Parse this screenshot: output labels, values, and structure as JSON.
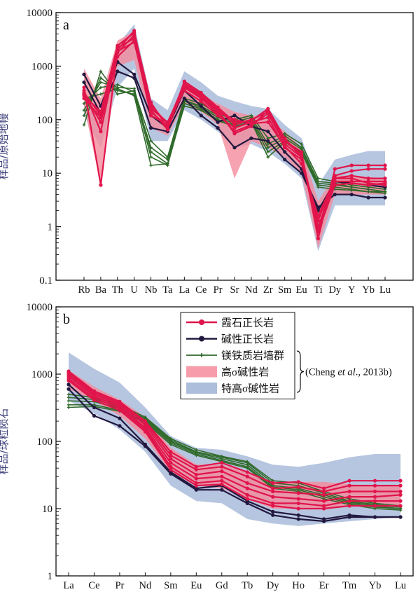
{
  "colors": {
    "nepheline_syenite": "#e0154b",
    "alkali_syenite": "#22183f",
    "mafic_dyke": "#2f6a2a",
    "high_sigma_band": "#f48b9c",
    "very_high_sigma_band": "#9fb3d6"
  },
  "legend": {
    "items": [
      {
        "label": "霞石正长岩",
        "color": "#e0154b",
        "marker": "circle-line"
      },
      {
        "label": "碱性正长岩",
        "color": "#22183f",
        "marker": "circle-line"
      },
      {
        "label": "镁铁质岩墙群",
        "color": "#2f6a2a",
        "marker": "plus-line"
      },
      {
        "label": "高σ碱性岩",
        "color": "#f48b9c",
        "marker": "fill"
      },
      {
        "label": "特高σ碱性岩",
        "color": "#9fb3d6",
        "marker": "fill"
      }
    ],
    "citation_parts": [
      "(Cheng ",
      "et al",
      "., 2013b)"
    ]
  },
  "chart_data": [
    {
      "type": "line",
      "panel_label": "a",
      "ylabel": "样品/原始地幔",
      "yscale": "log",
      "ylim": [
        0.1,
        10000
      ],
      "ytick_labels": [
        "0.1",
        "1",
        "10",
        "100",
        "1000",
        "10000"
      ],
      "categories": [
        "Rb",
        "Ba",
        "Th",
        "U",
        "Nb",
        "Ta",
        "La",
        "Ce",
        "Pr",
        "Sr",
        "Nd",
        "Zr",
        "Sm",
        "Eu",
        "Ti",
        "Dy",
        "Y",
        "Yb",
        "Lu"
      ],
      "bands": [
        {
          "name": "特高σ碱性岩",
          "upper": [
            300,
            150,
            2500,
            6000,
            250,
            150,
            800,
            500,
            280,
            220,
            180,
            160,
            80,
            45,
            6,
            18,
            22,
            26,
            26
          ],
          "lower": [
            120,
            30,
            400,
            900,
            40,
            40,
            150,
            100,
            60,
            30,
            35,
            25,
            15,
            8,
            0.35,
            2.5,
            2.5,
            2.5,
            2.5
          ]
        },
        {
          "name": "高σ碱性岩",
          "upper": [
            900,
            250,
            3000,
            4500,
            200,
            90,
            450,
            300,
            200,
            140,
            120,
            110,
            60,
            30,
            3,
            9,
            9,
            8.5,
            8
          ],
          "lower": [
            180,
            6,
            1000,
            1300,
            70,
            50,
            200,
            140,
            80,
            8,
            40,
            30,
            20,
            10,
            0.4,
            4,
            4,
            4,
            4
          ]
        }
      ],
      "series": [
        {
          "group": "霞石正长岩",
          "values": [
            400,
            6,
            2000,
            4600,
            150,
            65,
            450,
            280,
            150,
            55,
            75,
            150,
            40,
            25,
            0.6,
            12,
            14,
            14,
            14
          ]
        },
        {
          "group": "霞石正长岩",
          "values": [
            350,
            60,
            1800,
            3800,
            140,
            75,
            400,
            250,
            130,
            60,
            80,
            130,
            35,
            20,
            0.9,
            9,
            11,
            12,
            12
          ]
        },
        {
          "group": "霞石正长岩",
          "values": [
            300,
            90,
            1500,
            3000,
            120,
            80,
            350,
            220,
            120,
            70,
            90,
            110,
            30,
            18,
            1.3,
            8,
            9,
            8,
            8
          ]
        },
        {
          "group": "霞石正长岩",
          "values": [
            250,
            110,
            2200,
            3300,
            180,
            85,
            480,
            300,
            160,
            80,
            100,
            140,
            40,
            22,
            1.0,
            7,
            7,
            7,
            7
          ]
        },
        {
          "group": "霞石正长岩",
          "values": [
            280,
            140,
            2400,
            4200,
            210,
            70,
            520,
            320,
            170,
            90,
            95,
            160,
            45,
            20,
            0.8,
            6,
            6.5,
            6,
            6.5
          ]
        },
        {
          "group": "霞石正长岩",
          "values": [
            320,
            120,
            1900,
            2800,
            160,
            90,
            430,
            260,
            140,
            100,
            85,
            90,
            32,
            15,
            1.6,
            8,
            8,
            6.5,
            6
          ]
        },
        {
          "group": "碱性正长岩",
          "values": [
            700,
            180,
            1200,
            700,
            120,
            70,
            350,
            180,
            90,
            120,
            75,
            60,
            25,
            12,
            2.0,
            7,
            6.5,
            6,
            5.5
          ]
        },
        {
          "group": "碱性正长岩",
          "values": [
            500,
            130,
            800,
            600,
            70,
            60,
            250,
            120,
            70,
            30,
            45,
            40,
            18,
            10,
            2.3,
            4,
            4,
            3.5,
            3.5
          ]
        },
        {
          "group": "镁铁质岩墙群",
          "values": [
            80,
            800,
            300,
            350,
            40,
            20,
            250,
            200,
            130,
            100,
            120,
            45,
            55,
            35,
            8,
            7,
            6,
            5.5,
            5
          ]
        },
        {
          "group": "镁铁质岩墙群",
          "values": [
            120,
            600,
            350,
            300,
            30,
            18,
            230,
            180,
            120,
            90,
            110,
            35,
            50,
            30,
            7,
            6.5,
            5.5,
            5,
            4.5
          ]
        },
        {
          "group": "镁铁质岩墙群",
          "values": [
            150,
            500,
            400,
            380,
            25,
            15,
            220,
            170,
            110,
            85,
            100,
            30,
            45,
            28,
            6.5,
            6,
            5.5,
            5,
            4.5
          ]
        },
        {
          "group": "镁铁质岩墙群",
          "values": [
            200,
            400,
            450,
            330,
            20,
            14,
            200,
            160,
            100,
            80,
            95,
            25,
            40,
            25,
            6,
            5.5,
            5,
            4.5,
            4.5
          ]
        },
        {
          "group": "镁铁质岩墙群",
          "values": [
            250,
            300,
            380,
            280,
            14,
            15,
            180,
            150,
            95,
            75,
            90,
            20,
            38,
            24,
            5.5,
            5,
            4.8,
            4.5,
            4.2
          ]
        }
      ]
    },
    {
      "type": "line",
      "panel_label": "b",
      "ylabel": "样品/球粒陨石",
      "yscale": "log",
      "ylim": [
        1,
        10000
      ],
      "ytick_labels": [
        "1",
        "10",
        "100",
        "1000",
        "10000"
      ],
      "categories": [
        "La",
        "Ce",
        "Pr",
        "Nd",
        "Sm",
        "Eu",
        "Gd",
        "Tb",
        "Dy",
        "Ho",
        "Er",
        "Tm",
        "Yb",
        "Lu"
      ],
      "bands": [
        {
          "name": "特高σ碱性岩",
          "upper": [
            2100,
            1200,
            750,
            320,
            120,
            80,
            75,
            60,
            45,
            42,
            48,
            58,
            65,
            65
          ],
          "lower": [
            400,
            260,
            150,
            70,
            22,
            13,
            12,
            7,
            6,
            5.5,
            6,
            6.5,
            7,
            7.5
          ]
        },
        {
          "name": "高σ碱性岩",
          "upper": [
            1150,
            650,
            420,
            230,
            80,
            45,
            45,
            35,
            25,
            25,
            25,
            23,
            22,
            22
          ],
          "lower": [
            600,
            400,
            240,
            110,
            35,
            22,
            20,
            14,
            10,
            10,
            10,
            11,
            11,
            11
          ]
        }
      ],
      "series": [
        {
          "group": "霞石正长岩",
          "values": [
            1100,
            560,
            390,
            200,
            70,
            42,
            48,
            35,
            24,
            25,
            20,
            26,
            26,
            26
          ]
        },
        {
          "group": "霞石正长岩",
          "values": [
            1050,
            530,
            370,
            190,
            62,
            38,
            42,
            30,
            20,
            21,
            18,
            22,
            22,
            22
          ]
        },
        {
          "group": "霞石正长岩",
          "values": [
            980,
            500,
            350,
            175,
            55,
            32,
            36,
            24,
            18,
            17,
            16,
            18,
            18,
            18
          ]
        },
        {
          "group": "霞石正长岩",
          "values": [
            920,
            470,
            330,
            160,
            48,
            28,
            30,
            20,
            15,
            14,
            13,
            15,
            15,
            16
          ]
        },
        {
          "group": "霞石正长岩",
          "values": [
            850,
            440,
            310,
            150,
            42,
            24,
            26,
            16,
            12,
            12,
            11,
            13,
            13,
            13
          ]
        },
        {
          "group": "霞石正长岩",
          "values": [
            800,
            410,
            290,
            140,
            38,
            22,
            23,
            14,
            11,
            10,
            10,
            11,
            11,
            11
          ]
        },
        {
          "group": "碱性正长岩",
          "values": [
            700,
            320,
            220,
            90,
            35,
            20,
            22,
            13,
            9,
            8,
            7,
            8,
            7.5,
            7.5
          ]
        },
        {
          "group": "碱性正长岩",
          "values": [
            600,
            240,
            170,
            85,
            33,
            19,
            19,
            12,
            8,
            7,
            6.5,
            7.5,
            7.5,
            7.5
          ]
        },
        {
          "group": "镁铁质岩墙群",
          "values": [
            500,
            450,
            350,
            230,
            110,
            75,
            60,
            50,
            26,
            24,
            18,
            14,
            12,
            11
          ]
        },
        {
          "group": "镁铁质岩墙群",
          "values": [
            450,
            420,
            330,
            220,
            105,
            70,
            58,
            48,
            24,
            22,
            17,
            13,
            11.5,
            10.5
          ]
        },
        {
          "group": "镁铁质岩墙群",
          "values": [
            400,
            390,
            310,
            210,
            100,
            68,
            55,
            45,
            22,
            20,
            16,
            12.5,
            11,
            10
          ]
        },
        {
          "group": "镁铁质岩墙群",
          "values": [
            350,
            350,
            290,
            200,
            95,
            65,
            52,
            42,
            21,
            19,
            15,
            12,
            10.5,
            10
          ]
        },
        {
          "group": "镁铁质岩墙群",
          "values": [
            320,
            330,
            280,
            190,
            90,
            62,
            50,
            40,
            20,
            18,
            14,
            11.5,
            10,
            9.5
          ]
        }
      ]
    }
  ]
}
